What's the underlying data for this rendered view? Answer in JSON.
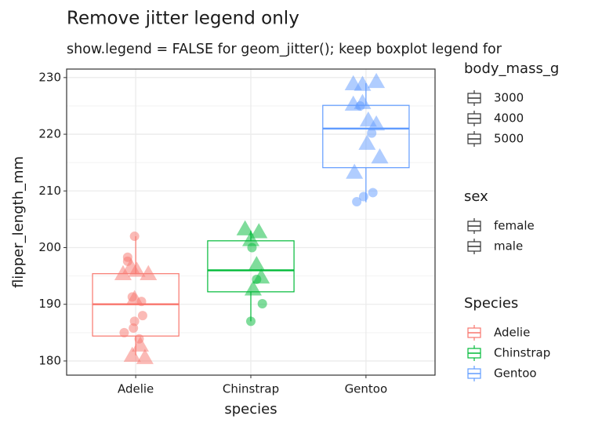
{
  "chart_data": {
    "type": "boxplot",
    "title": "Remove jitter legend only",
    "subtitle": "show.legend = FALSE for geom_jitter(); keep boxplot legend for",
    "x_label": "species",
    "y_label": "flipper_length_mm",
    "categories": [
      "Adelie",
      "Chinstrap",
      "Gentoo"
    ],
    "xlim": [
      -0.6,
      2.6
    ],
    "ylim": [
      177.5,
      231.5
    ],
    "yticks": [
      180,
      190,
      200,
      210,
      220,
      230
    ],
    "grid": true,
    "series": [
      {
        "name": "Adelie",
        "color": "#F8766D",
        "box": {
          "lower_whisker": 181,
          "q1": 184.4,
          "median": 190,
          "q3": 195.4,
          "upper_whisker": 202
        },
        "points": {
          "x": [
            -0.01,
            -0.07,
            -0.07,
            -0.03,
            -0.01,
            -0.02,
            0.03,
            -0.1,
            0.06,
            0.05,
            -0.11,
            -0.04,
            0.01,
            0.11,
            0.04,
            0.08,
            -0.03,
            -0.01
          ],
          "y": [
            202,
            198.3,
            197.6,
            191.3,
            187,
            185.8,
            183.9,
            185,
            188,
            190.5,
            195.4,
            196.6,
            196,
            195.4,
            182.8,
            180.6,
            181,
            191
          ],
          "sex": [
            "female",
            "female",
            "female",
            "female",
            "female",
            "female",
            "female",
            "female",
            "female",
            "female",
            "male",
            "male",
            "male",
            "male",
            "male",
            "male",
            "male",
            "male"
          ]
        }
      },
      {
        "name": "Chinstrap",
        "color": "#00BA38",
        "box": {
          "lower_whisker": 187,
          "q1": 192.2,
          "median": 196,
          "q3": 201.2,
          "upper_whisker": 203
        },
        "points": {
          "x": [
            0.95,
            1.07,
            1.0,
            1.05,
            1.09,
            1.02,
            1.01,
            1.0,
            1.1,
            1.05
          ],
          "y": [
            203.3,
            202.8,
            201.4,
            197,
            194.8,
            192.7,
            200,
            187,
            190.1,
            194.4
          ],
          "sex": [
            "male",
            "male",
            "male",
            "male",
            "male",
            "male",
            "female",
            "female",
            "female",
            "female"
          ]
        }
      },
      {
        "name": "Gentoo",
        "color": "#619CFF",
        "box": {
          "lower_whisker": 208,
          "q1": 214.1,
          "median": 221,
          "q3": 225.1,
          "upper_whisker": 229
        },
        "points": {
          "x": [
            1.89,
            1.97,
            2.09,
            1.89,
            1.97,
            2.02,
            2.12,
            1.9,
            2.01,
            2.09,
            2.05,
            1.98,
            2.06,
            1.92,
            1.95
          ],
          "y": [
            228.9,
            228.8,
            229.3,
            225.3,
            225.6,
            222.5,
            216,
            213.3,
            218.4,
            221.8,
            220.2,
            209,
            209.7,
            208.1,
            225
          ],
          "sex": [
            "male",
            "male",
            "male",
            "male",
            "male",
            "male",
            "male",
            "male",
            "male",
            "male",
            "female",
            "female",
            "female",
            "female",
            "female"
          ]
        }
      }
    ],
    "legends": [
      {
        "title": "body_mass_g",
        "labels": [
          "3000",
          "4000",
          "5000"
        ]
      },
      {
        "title": "sex",
        "labels": [
          "female",
          "male"
        ]
      },
      {
        "title": "Species",
        "labels": [
          "Adelie",
          "Chinstrap",
          "Gentoo"
        ],
        "colors": [
          "#F8766D",
          "#00BA38",
          "#619CFF"
        ]
      }
    ]
  }
}
